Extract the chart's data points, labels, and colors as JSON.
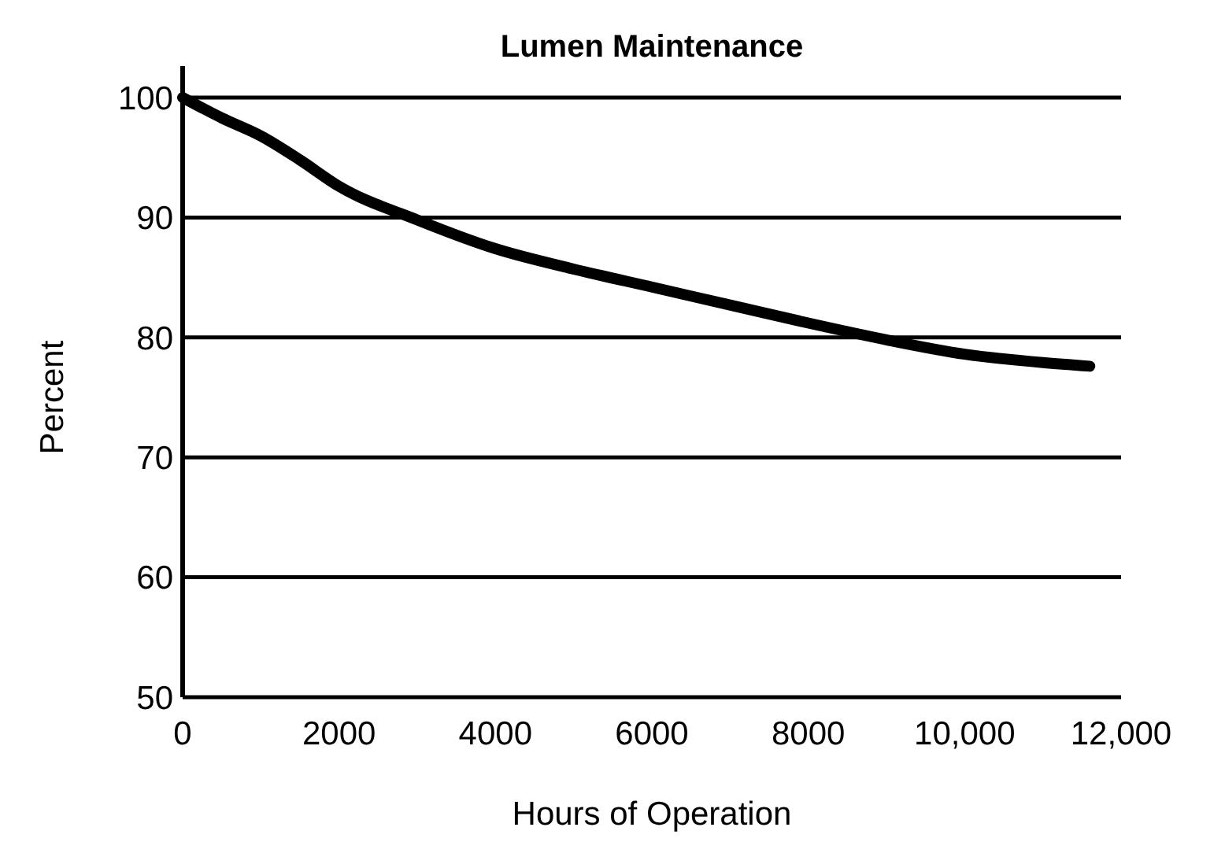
{
  "chart_data": {
    "type": "line",
    "title": "Lumen Maintenance",
    "xlabel": "Hours of Operation",
    "ylabel": "Percent",
    "x": [
      0,
      500,
      1000,
      1500,
      2000,
      3000,
      4000,
      5000,
      6000,
      7000,
      8000,
      9000,
      10000,
      11000,
      11600
    ],
    "series": [
      {
        "color": "#000000",
        "values": [
          100,
          98.3,
          96.8,
          94.8,
          92.6,
          89.8,
          87.4,
          85.7,
          84.2,
          82.7,
          81.2,
          79.8,
          78.6,
          77.9,
          77.6
        ]
      }
    ],
    "xlim": [
      0,
      12000
    ],
    "xticks": [
      0,
      2000,
      4000,
      6000,
      8000,
      {
        "value": 10000,
        "label": "10,000"
      },
      {
        "value": 12000,
        "label": "12,000"
      }
    ],
    "ylim": [
      50,
      100
    ],
    "yticks": [
      50,
      60,
      70,
      80,
      90,
      100
    ],
    "grid": "y",
    "marker": "none",
    "line_style": "solid"
  }
}
